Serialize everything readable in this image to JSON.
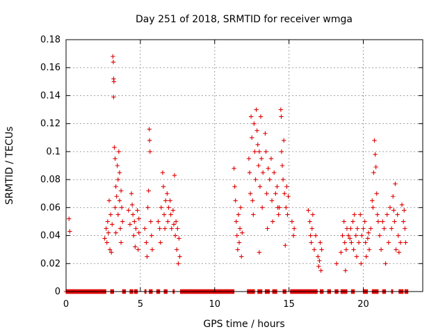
{
  "chart_data": {
    "type": "scatter",
    "title": "Day 251 of 2018, SRMTID for receiver wmga",
    "xlabel": "GPS time / hours",
    "ylabel": "SRMTID / TECUs",
    "xlim": [
      0,
      24
    ],
    "ylim": [
      0,
      0.18
    ],
    "x_ticks": [
      0,
      5,
      10,
      15,
      20
    ],
    "x_tick_labels": [
      "0",
      "5",
      "10",
      "15",
      "20"
    ],
    "y_ticks": [
      0,
      0.02,
      0.04,
      0.06,
      0.08,
      0.1,
      0.12,
      0.14,
      0.16,
      0.18
    ],
    "y_tick_labels": [
      "0",
      "0.02",
      "0.04",
      "0.06",
      "0.08",
      "0.1",
      "0.12",
      "0.14",
      "0.16",
      "0.18"
    ],
    "grid": true,
    "marker": "+",
    "color": "#e00000",
    "series": [
      {
        "name": "SRMTID",
        "points": [
          [
            0.2,
            0.052
          ],
          [
            0.25,
            0.043
          ],
          [
            2.6,
            0.038
          ],
          [
            2.7,
            0.045
          ],
          [
            2.75,
            0.035
          ],
          [
            2.8,
            0.05
          ],
          [
            2.85,
            0.042
          ],
          [
            2.9,
            0.065
          ],
          [
            2.95,
            0.03
          ],
          [
            3.0,
            0.055
          ],
          [
            3.05,
            0.028
          ],
          [
            3.1,
            0.048
          ],
          [
            3.15,
            0.168
          ],
          [
            3.18,
            0.164
          ],
          [
            3.2,
            0.152
          ],
          [
            3.22,
            0.15
          ],
          [
            3.2,
            0.139
          ],
          [
            3.25,
            0.103
          ],
          [
            3.3,
            0.095
          ],
          [
            3.3,
            0.06
          ],
          [
            3.35,
            0.075
          ],
          [
            3.35,
            0.042
          ],
          [
            3.4,
            0.068
          ],
          [
            3.45,
            0.09
          ],
          [
            3.5,
            0.08
          ],
          [
            3.5,
            0.055
          ],
          [
            3.55,
            0.1
          ],
          [
            3.6,
            0.085
          ],
          [
            3.6,
            0.065
          ],
          [
            3.65,
            0.045
          ],
          [
            3.7,
            0.072
          ],
          [
            3.7,
            0.035
          ],
          [
            3.75,
            0.06
          ],
          [
            3.8,
            0.05
          ],
          [
            4.2,
            0.058
          ],
          [
            4.3,
            0.048
          ],
          [
            4.4,
            0.07
          ],
          [
            4.45,
            0.062
          ],
          [
            4.5,
            0.055
          ],
          [
            4.55,
            0.04
          ],
          [
            4.6,
            0.05
          ],
          [
            4.65,
            0.032
          ],
          [
            4.7,
            0.045
          ],
          [
            4.8,
            0.058
          ],
          [
            4.85,
            0.03
          ],
          [
            4.9,
            0.052
          ],
          [
            4.9,
            0.042
          ],
          [
            5.3,
            0.045
          ],
          [
            5.4,
            0.035
          ],
          [
            5.45,
            0.025
          ],
          [
            5.5,
            0.06
          ],
          [
            5.55,
            0.072
          ],
          [
            5.6,
            0.116
          ],
          [
            5.62,
            0.108
          ],
          [
            5.65,
            0.1
          ],
          [
            5.7,
            0.05
          ],
          [
            5.75,
            0.04
          ],
          [
            5.8,
            0.03
          ],
          [
            6.2,
            0.05
          ],
          [
            6.3,
            0.045
          ],
          [
            6.35,
            0.035
          ],
          [
            6.4,
            0.06
          ],
          [
            6.5,
            0.085
          ],
          [
            6.55,
            0.075
          ],
          [
            6.6,
            0.055
          ],
          [
            6.65,
            0.045
          ],
          [
            6.7,
            0.065
          ],
          [
            6.8,
            0.07
          ],
          [
            6.85,
            0.05
          ],
          [
            6.9,
            0.06
          ],
          [
            7.0,
            0.065
          ],
          [
            7.05,
            0.055
          ],
          [
            7.1,
            0.045
          ],
          [
            7.2,
            0.058
          ],
          [
            7.25,
            0.048
          ],
          [
            7.3,
            0.083
          ],
          [
            7.35,
            0.04
          ],
          [
            7.4,
            0.05
          ],
          [
            7.45,
            0.03
          ],
          [
            7.5,
            0.045
          ],
          [
            7.55,
            0.02
          ],
          [
            7.6,
            0.038
          ],
          [
            7.65,
            0.025
          ],
          [
            11.3,
            0.088
          ],
          [
            11.35,
            0.075
          ],
          [
            11.4,
            0.065
          ],
          [
            11.45,
            0.05
          ],
          [
            11.5,
            0.04
          ],
          [
            11.55,
            0.03
          ],
          [
            11.6,
            0.055
          ],
          [
            11.65,
            0.035
          ],
          [
            11.7,
            0.045
          ],
          [
            11.75,
            0.06
          ],
          [
            11.8,
            0.025
          ],
          [
            11.85,
            0.042
          ],
          [
            12.3,
            0.095
          ],
          [
            12.35,
            0.085
          ],
          [
            12.4,
            0.07
          ],
          [
            12.45,
            0.125
          ],
          [
            12.5,
            0.11
          ],
          [
            12.55,
            0.065
          ],
          [
            12.6,
            0.055
          ],
          [
            12.65,
            0.12
          ],
          [
            12.7,
            0.1
          ],
          [
            12.75,
            0.08
          ],
          [
            12.8,
            0.13
          ],
          [
            12.85,
            0.115
          ],
          [
            12.9,
            0.105
          ],
          [
            12.95,
            0.09
          ],
          [
            13.0,
            0.1
          ],
          [
            13.0,
            0.028
          ],
          [
            13.05,
            0.075
          ],
          [
            13.1,
            0.125
          ],
          [
            13.15,
            0.095
          ],
          [
            13.2,
            0.06
          ],
          [
            13.25,
            0.085
          ],
          [
            13.4,
            0.113
          ],
          [
            13.45,
            0.1
          ],
          [
            13.5,
            0.07
          ],
          [
            13.55,
            0.045
          ],
          [
            13.6,
            0.088
          ],
          [
            13.7,
            0.08
          ],
          [
            13.8,
            0.095
          ],
          [
            13.85,
            0.065
          ],
          [
            13.9,
            0.05
          ],
          [
            14.0,
            0.085
          ],
          [
            14.1,
            0.07
          ],
          [
            14.2,
            0.075
          ],
          [
            14.25,
            0.06
          ],
          [
            14.3,
            0.055
          ],
          [
            14.35,
            0.06
          ],
          [
            14.45,
            0.13
          ],
          [
            14.48,
            0.125
          ],
          [
            14.5,
            0.1
          ],
          [
            14.55,
            0.09
          ],
          [
            14.6,
            0.08
          ],
          [
            14.65,
            0.108
          ],
          [
            14.7,
            0.07
          ],
          [
            14.75,
            0.033
          ],
          [
            14.8,
            0.06
          ],
          [
            14.85,
            0.075
          ],
          [
            14.9,
            0.055
          ],
          [
            14.95,
            0.068
          ],
          [
            15.2,
            0.05
          ],
          [
            15.3,
            0.04
          ],
          [
            15.35,
            0.045
          ],
          [
            16.3,
            0.058
          ],
          [
            16.4,
            0.05
          ],
          [
            16.45,
            0.04
          ],
          [
            16.5,
            0.035
          ],
          [
            16.55,
            0.045
          ],
          [
            16.6,
            0.055
          ],
          [
            16.7,
            0.03
          ],
          [
            16.8,
            0.04
          ],
          [
            16.95,
            0.025
          ],
          [
            17.0,
            0.018
          ],
          [
            17.05,
            0.022
          ],
          [
            17.1,
            0.035
          ],
          [
            17.15,
            0.015
          ],
          [
            17.2,
            0.03
          ],
          [
            18.2,
            0.02
          ],
          [
            18.5,
            0.028
          ],
          [
            18.6,
            0.04
          ],
          [
            18.7,
            0.05
          ],
          [
            18.75,
            0.035
          ],
          [
            18.8,
            0.015
          ],
          [
            18.85,
            0.03
          ],
          [
            18.9,
            0.045
          ],
          [
            19.0,
            0.04
          ],
          [
            19.1,
            0.038
          ],
          [
            19.15,
            0.045
          ],
          [
            19.2,
            0.035
          ],
          [
            19.3,
            0.05
          ],
          [
            19.35,
            0.03
          ],
          [
            19.4,
            0.055
          ],
          [
            19.5,
            0.04
          ],
          [
            19.55,
            0.025
          ],
          [
            19.6,
            0.045
          ],
          [
            19.7,
            0.035
          ],
          [
            19.8,
            0.055
          ],
          [
            19.85,
            0.02
          ],
          [
            19.9,
            0.04
          ],
          [
            20.0,
            0.045
          ],
          [
            20.1,
            0.05
          ],
          [
            20.15,
            0.035
          ],
          [
            20.2,
            0.025
          ],
          [
            20.3,
            0.038
          ],
          [
            20.35,
            0.042
          ],
          [
            20.4,
            0.03
          ],
          [
            20.5,
            0.045
          ],
          [
            20.6,
            0.065
          ],
          [
            20.65,
            0.06
          ],
          [
            20.7,
            0.085
          ],
          [
            20.75,
            0.108
          ],
          [
            20.8,
            0.098
          ],
          [
            20.85,
            0.089
          ],
          [
            20.9,
            0.07
          ],
          [
            20.95,
            0.055
          ],
          [
            21.0,
            0.05
          ],
          [
            21.1,
            0.04
          ],
          [
            21.2,
            0.03
          ],
          [
            21.3,
            0.05
          ],
          [
            21.4,
            0.045
          ],
          [
            21.5,
            0.02
          ],
          [
            21.6,
            0.055
          ],
          [
            21.7,
            0.035
          ],
          [
            21.8,
            0.06
          ],
          [
            21.9,
            0.045
          ],
          [
            22.0,
            0.068
          ],
          [
            22.05,
            0.058
          ],
          [
            22.1,
            0.05
          ],
          [
            22.15,
            0.077
          ],
          [
            22.2,
            0.03
          ],
          [
            22.3,
            0.055
          ],
          [
            22.35,
            0.04
          ],
          [
            22.4,
            0.028
          ],
          [
            22.5,
            0.035
          ],
          [
            22.6,
            0.062
          ],
          [
            22.7,
            0.05
          ],
          [
            22.75,
            0.058
          ],
          [
            22.8,
            0.045
          ],
          [
            22.85,
            0.035
          ]
        ]
      }
    ],
    "zero_ranges": [
      [
        0.0,
        2.7
      ],
      [
        3.0,
        3.2
      ],
      [
        3.8,
        4.0
      ],
      [
        4.3,
        4.5
      ],
      [
        4.6,
        4.8
      ],
      [
        5.3,
        5.4
      ],
      [
        5.6,
        5.8
      ],
      [
        6.1,
        6.3
      ],
      [
        6.6,
        6.8
      ],
      [
        7.2,
        7.3
      ],
      [
        7.7,
        11.3
      ],
      [
        12.2,
        12.7
      ],
      [
        12.9,
        13.2
      ],
      [
        13.4,
        13.7
      ],
      [
        13.9,
        14.2
      ],
      [
        14.6,
        14.8
      ],
      [
        15.1,
        16.9
      ],
      [
        17.1,
        17.3
      ],
      [
        17.6,
        17.8
      ],
      [
        18.1,
        18.3
      ],
      [
        18.5,
        18.9
      ],
      [
        19.2,
        19.4
      ],
      [
        20.0,
        20.3
      ],
      [
        20.6,
        21.0
      ],
      [
        21.3,
        21.5
      ],
      [
        21.9,
        22.0
      ],
      [
        22.4,
        22.7
      ],
      [
        22.8,
        23.0
      ]
    ]
  }
}
